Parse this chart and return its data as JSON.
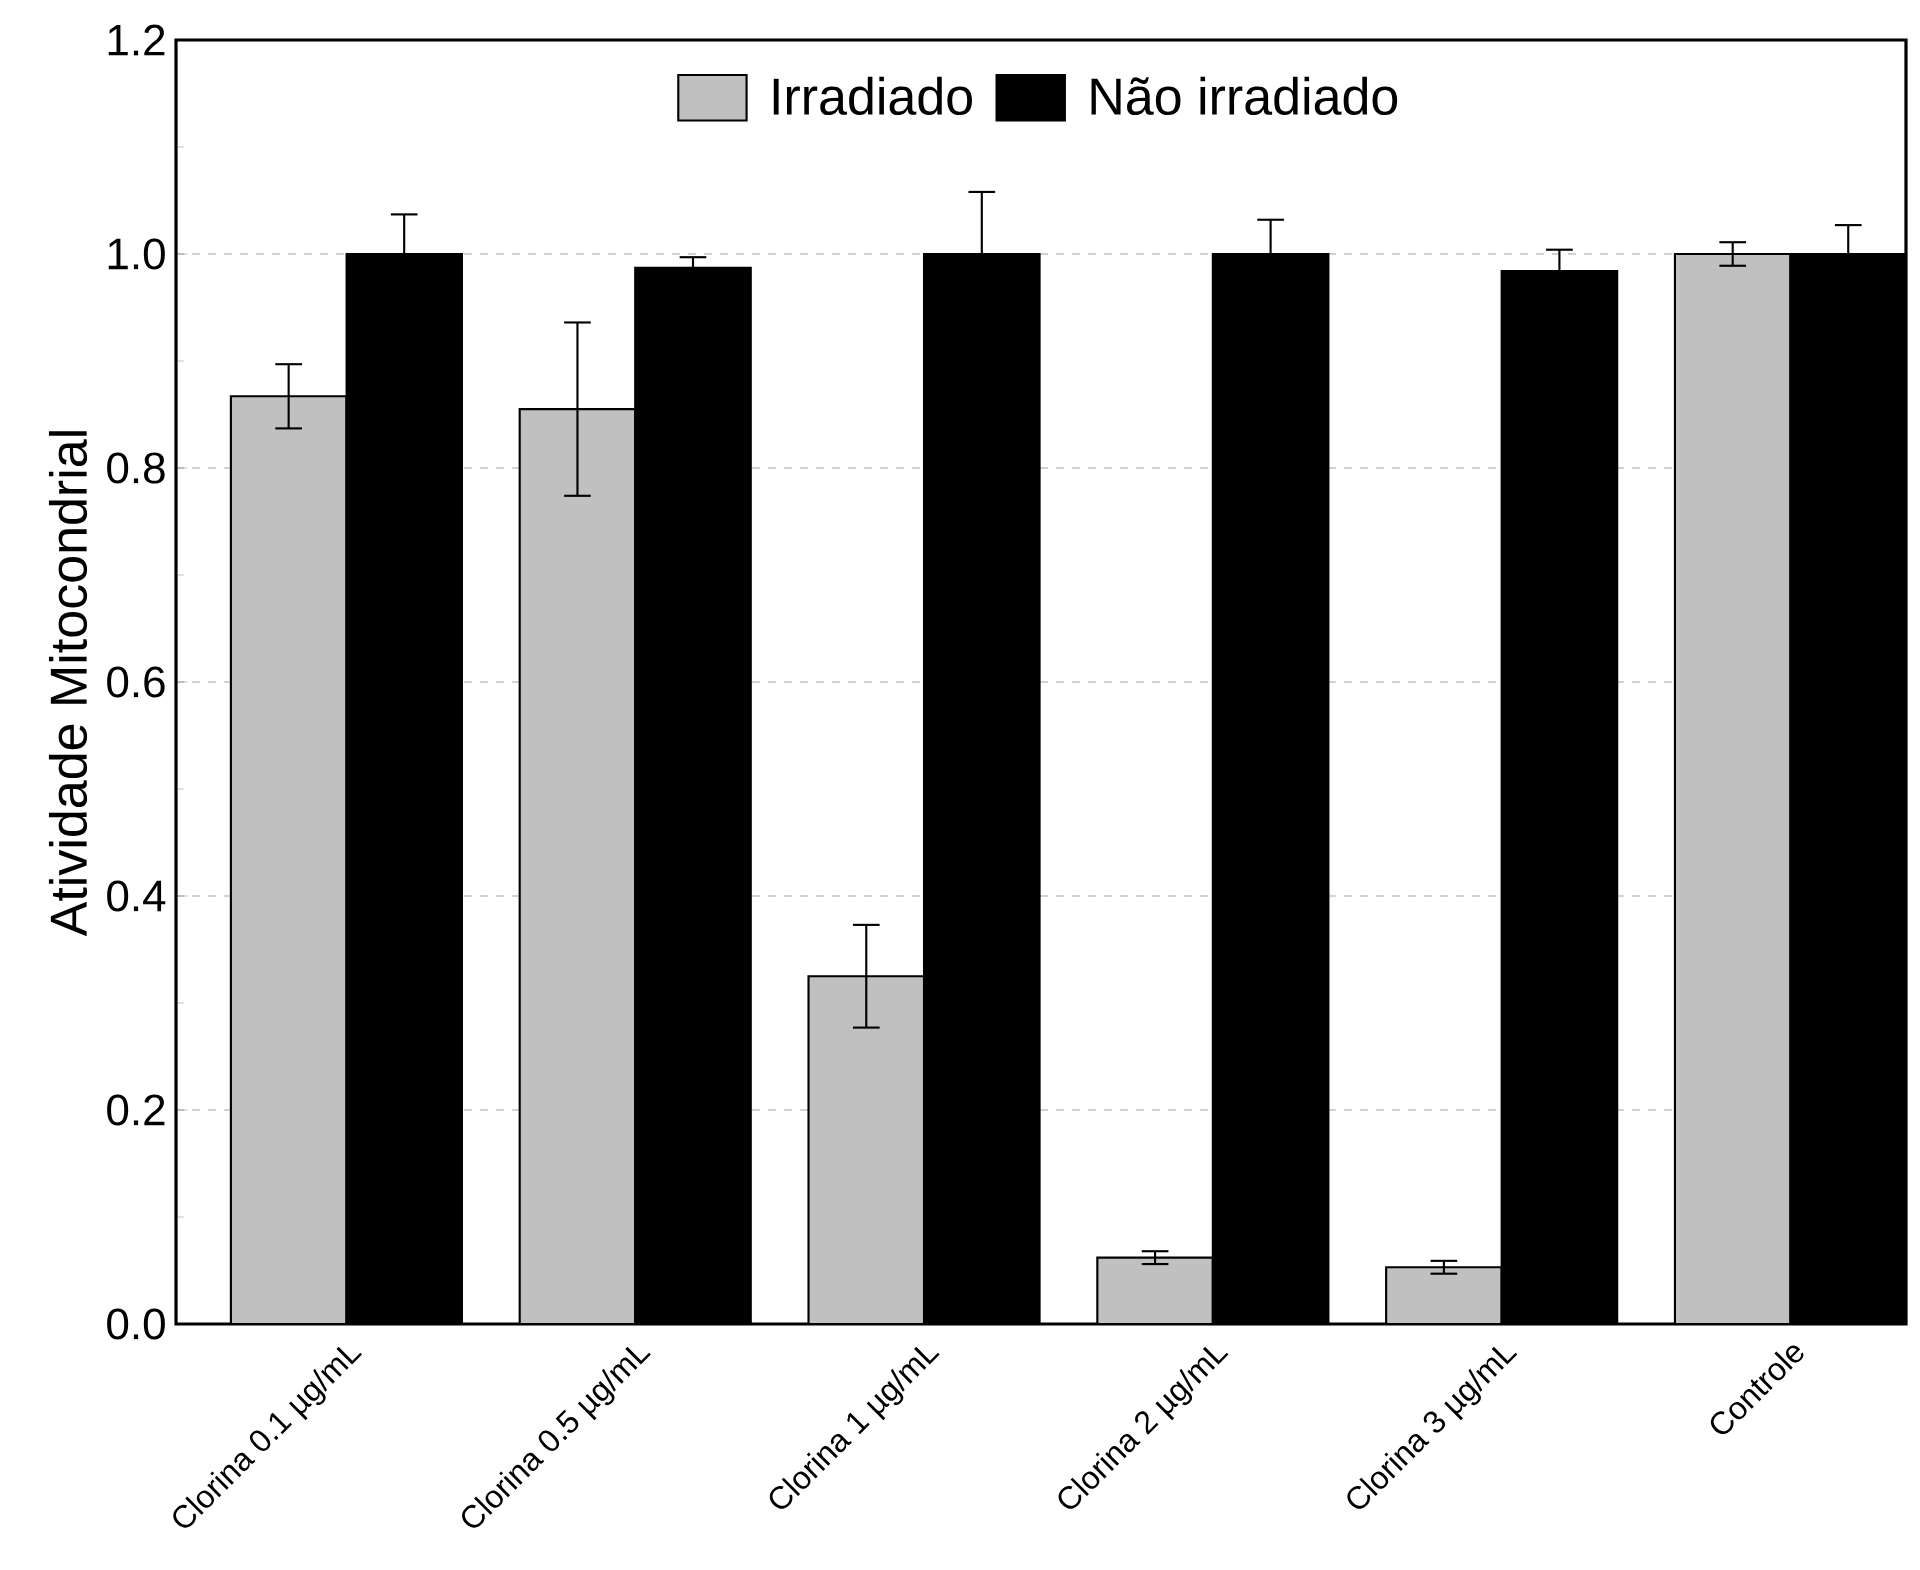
{
  "chart_data": {
    "type": "bar",
    "ylabel": "Atividade Mitocondrial",
    "categories": [
      "Clorina 0.1 µg/mL",
      "Clorina 0.5 µg/mL",
      "Clorina 1 µg/mL",
      "Clorina 2 µg/mL",
      "Clorina 3 µg/mL",
      "Controle"
    ],
    "series": [
      {
        "name": "Irradiado",
        "color": "#c0c0c0",
        "values": [
          0.867,
          0.855,
          0.325,
          0.062,
          0.053,
          1.0
        ],
        "errors": [
          0.03,
          0.081,
          0.048,
          0.006,
          0.006,
          0.011
        ]
      },
      {
        "name": "Não irradiado",
        "color": "#000000",
        "values": [
          1.0,
          0.987,
          1.0,
          1.0,
          0.984,
          1.0
        ],
        "errors": [
          0.037,
          0.01,
          0.058,
          0.032,
          0.02,
          0.027
        ]
      }
    ],
    "ylim": [
      0,
      1.2
    ],
    "yticks": [
      {
        "value": 0,
        "label": "0.0"
      },
      0.2,
      0.4,
      0.6,
      0.8,
      {
        "value": 1.0,
        "label": "1.0"
      },
      1.2
    ],
    "grid": "y",
    "legend": "top"
  }
}
